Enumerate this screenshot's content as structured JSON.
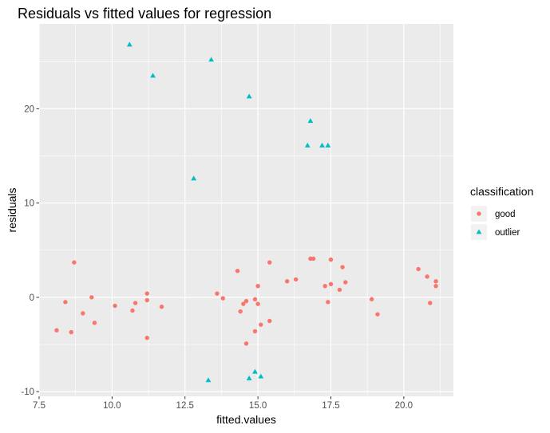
{
  "chart_data": {
    "type": "scatter",
    "title": "Residuals vs fitted values for regression",
    "xlabel": "fitted.values",
    "ylabel": "residuals",
    "xlim": [
      7.5,
      21.7
    ],
    "ylim": [
      -10.5,
      29
    ],
    "x_ticks": [
      7.5,
      10.0,
      12.5,
      15.0,
      17.5,
      20.0
    ],
    "x_tick_labels": [
      "7.5",
      "10.0",
      "12.5",
      "15.0",
      "17.5",
      "20.0"
    ],
    "y_ticks": [
      -10,
      0,
      10,
      20
    ],
    "y_tick_labels": [
      "-10",
      "0",
      "10",
      "20"
    ],
    "grid": true,
    "legend_title": "classification",
    "legend_position": "right",
    "series": [
      {
        "name": "good",
        "marker": "circle",
        "color": "#F8766D",
        "points": [
          [
            8.1,
            -3.5
          ],
          [
            8.4,
            -0.5
          ],
          [
            8.6,
            -3.7
          ],
          [
            8.7,
            3.7
          ],
          [
            9.0,
            -1.7
          ],
          [
            9.3,
            0.0
          ],
          [
            9.4,
            -2.7
          ],
          [
            10.1,
            -0.9
          ],
          [
            10.7,
            -1.4
          ],
          [
            10.8,
            -0.6
          ],
          [
            11.2,
            -4.3
          ],
          [
            11.2,
            0.4
          ],
          [
            11.2,
            -0.3
          ],
          [
            11.7,
            -1.0
          ],
          [
            13.6,
            0.4
          ],
          [
            13.8,
            -0.1
          ],
          [
            14.3,
            2.8
          ],
          [
            14.4,
            -1.5
          ],
          [
            14.5,
            -0.7
          ],
          [
            14.6,
            -0.4
          ],
          [
            14.6,
            -4.9
          ],
          [
            14.9,
            -3.6
          ],
          [
            14.9,
            -0.2
          ],
          [
            15.0,
            -0.7
          ],
          [
            15.0,
            1.2
          ],
          [
            15.1,
            -2.9
          ],
          [
            15.4,
            3.7
          ],
          [
            15.4,
            -2.5
          ],
          [
            16.0,
            1.7
          ],
          [
            16.3,
            1.9
          ],
          [
            16.8,
            4.1
          ],
          [
            16.9,
            4.1
          ],
          [
            17.3,
            1.2
          ],
          [
            17.4,
            -0.5
          ],
          [
            17.5,
            4.0
          ],
          [
            17.5,
            1.4
          ],
          [
            17.8,
            0.8
          ],
          [
            17.9,
            3.2
          ],
          [
            18.0,
            1.6
          ],
          [
            18.9,
            -0.2
          ],
          [
            19.1,
            -1.8
          ],
          [
            20.5,
            3.0
          ],
          [
            20.8,
            2.2
          ],
          [
            20.9,
            -0.6
          ],
          [
            21.1,
            1.2
          ],
          [
            21.1,
            1.7
          ]
        ]
      },
      {
        "name": "outlier",
        "marker": "triangle",
        "color": "#00BFC4",
        "points": [
          [
            10.6,
            26.8
          ],
          [
            11.4,
            23.5
          ],
          [
            12.8,
            12.6
          ],
          [
            13.3,
            -8.8
          ],
          [
            13.4,
            25.2
          ],
          [
            14.7,
            21.3
          ],
          [
            14.7,
            -8.6
          ],
          [
            14.9,
            -7.9
          ],
          [
            15.1,
            -8.4
          ],
          [
            16.7,
            16.1
          ],
          [
            16.8,
            18.7
          ],
          [
            17.2,
            16.1
          ],
          [
            17.4,
            16.1
          ]
        ]
      }
    ]
  }
}
